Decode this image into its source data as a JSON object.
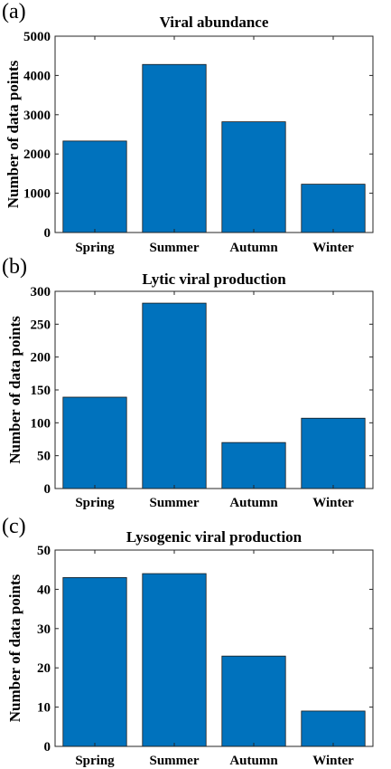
{
  "chart_data": [
    {
      "panel": "(a)",
      "type": "bar",
      "title": "Viral abundance",
      "ylabel": "Number of data points",
      "xlabel": "",
      "categories": [
        "Spring",
        "Summer",
        "Autumn",
        "Winter"
      ],
      "values": [
        2330,
        4280,
        2820,
        1230
      ],
      "ylim": [
        0,
        5000
      ],
      "yticks": [
        0,
        1000,
        2000,
        3000,
        4000,
        5000
      ],
      "bar_color": "#0072BD",
      "grid": false
    },
    {
      "panel": "(b)",
      "type": "bar",
      "title": "Lytic viral production",
      "ylabel": "Number of data points",
      "xlabel": "",
      "categories": [
        "Spring",
        "Summer",
        "Autumn",
        "Winter"
      ],
      "values": [
        139,
        282,
        70,
        107
      ],
      "ylim": [
        0,
        300
      ],
      "yticks": [
        0,
        50,
        100,
        150,
        200,
        250,
        300
      ],
      "bar_color": "#0072BD",
      "grid": false
    },
    {
      "panel": "(c)",
      "type": "bar",
      "title": "Lysogenic viral production",
      "ylabel": "Number of data points",
      "xlabel": "",
      "categories": [
        "Spring",
        "Summer",
        "Autumn",
        "Winter"
      ],
      "values": [
        43,
        44,
        23,
        9
      ],
      "ylim": [
        0,
        50
      ],
      "yticks": [
        0,
        10,
        20,
        30,
        40,
        50
      ],
      "bar_color": "#0072BD",
      "grid": false
    }
  ]
}
